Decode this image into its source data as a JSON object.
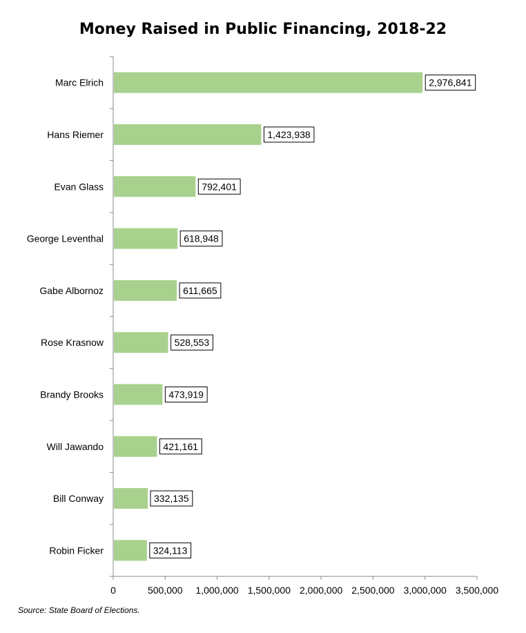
{
  "chart_data": {
    "type": "bar",
    "orientation": "horizontal",
    "title": "Money Raised in Public Financing, 2018-22",
    "categories": [
      "Marc Elrich",
      "Hans Riemer",
      "Evan Glass",
      "George Leventhal",
      "Gabe Albornoz",
      "Rose Krasnow",
      "Brandy Brooks",
      "Will Jawando",
      "Bill Conway",
      "Robin Ficker"
    ],
    "values": [
      2976841,
      1423938,
      792401,
      618948,
      611665,
      528553,
      473919,
      421161,
      332135,
      324113
    ],
    "data_labels": [
      "2,976,841",
      "1,423,938",
      "792,401",
      "618,948",
      "611,665",
      "528,553",
      "473,919",
      "421,161",
      "332,135",
      "324,113"
    ],
    "xlim": [
      0,
      3500000
    ],
    "x_ticks": [
      0,
      500000,
      1000000,
      1500000,
      2000000,
      2500000,
      3000000,
      3500000
    ],
    "x_tick_labels": [
      "0",
      "500,000",
      "1,000,000",
      "1,500,000",
      "2,000,000",
      "2,500,000",
      "3,000,000",
      "3,500,000"
    ],
    "bar_color": "#a9d18e",
    "grid": false,
    "legend": "none"
  },
  "source_note": "Source: State Board of Elections."
}
